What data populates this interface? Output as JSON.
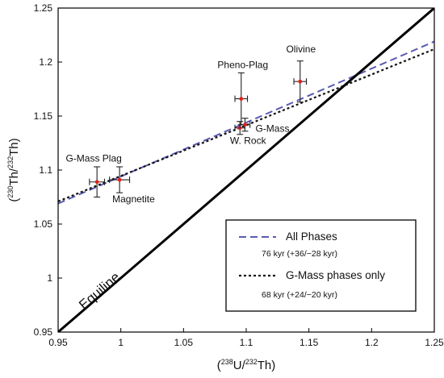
{
  "chart_data": {
    "type": "scatter",
    "xlabel_base": "U/",
    "xlabel_iso1": "238",
    "xlabel_iso2": "232",
    "xlabel_tail": "Th",
    "ylabel_iso1": "230",
    "ylabel_iso2": "232",
    "ylabel_mid": "Th/",
    "ylabel_tail": "Th",
    "xlim": [
      0.95,
      1.25
    ],
    "ylim": [
      0.95,
      1.25
    ],
    "xticks": [
      0.95,
      1,
      1.05,
      1.1,
      1.15,
      1.2,
      1.25
    ],
    "xtick_labels": [
      "0.95",
      "1",
      "1.05",
      "1.1",
      "1.15",
      "1.2",
      "1.25"
    ],
    "yticks": [
      0.95,
      1,
      1.05,
      1.1,
      1.15,
      1.2,
      1.25
    ],
    "ytick_labels": [
      "0.95",
      "1",
      "1.05",
      "1.1",
      "1.15",
      "1.2",
      "1.25"
    ],
    "points": [
      {
        "label": "G-Mass Plag",
        "x": 0.981,
        "y": 1.089,
        "xerr": 0.006,
        "yerr": 0.014
      },
      {
        "label": "Magnetite",
        "x": 0.999,
        "y": 1.091,
        "xerr": 0.008,
        "yerr": 0.012
      },
      {
        "label": "Pheno-Plag",
        "x": 1.096,
        "y": 1.166,
        "xerr": 0.005,
        "yerr": 0.024
      },
      {
        "label": "W. Rock",
        "x": 1.095,
        "y": 1.139,
        "xerr": 0.004,
        "yerr": 0.006
      },
      {
        "label": "G-Mass",
        "x": 1.099,
        "y": 1.142,
        "xerr": 0.004,
        "yerr": 0.006
      },
      {
        "label": "Olivine",
        "x": 1.143,
        "y": 1.182,
        "xerr": 0.005,
        "yerr": 0.019
      }
    ],
    "series": [
      {
        "name": "All Phases",
        "age": "76 kyr (+36/−28 kyr)",
        "style": "dashed",
        "color": "#5a5ab4",
        "x": [
          0.95,
          1.25
        ],
        "y": [
          1.069,
          1.219
        ]
      },
      {
        "name": "G-Mass phases only",
        "age": "68 kyr (+24/−20 kyr)",
        "style": "dotted",
        "color": "#111111",
        "x": [
          0.95,
          1.25
        ],
        "y": [
          1.071,
          1.212
        ]
      },
      {
        "name": "Equiline",
        "style": "solid",
        "color": "#000000",
        "x": [
          0.95,
          1.25
        ],
        "y": [
          0.95,
          1.25
        ]
      }
    ],
    "equiline_label": "Equiline",
    "point_color": "#e0201c",
    "legend_position": "bottom-right"
  }
}
